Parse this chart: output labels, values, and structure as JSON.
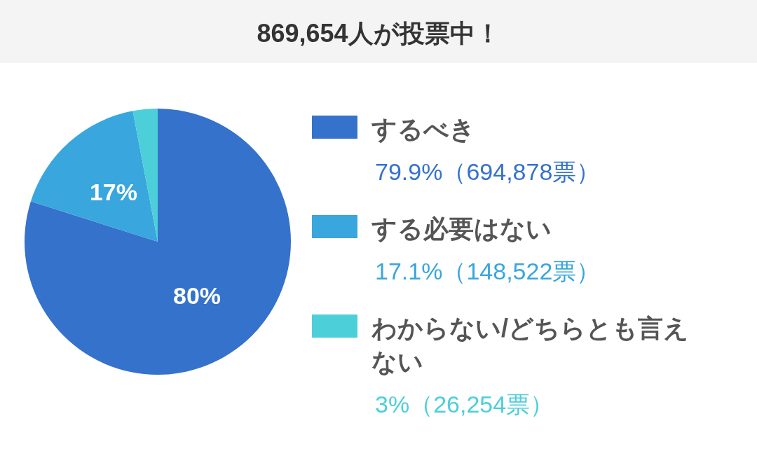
{
  "chart_data": {
    "type": "pie",
    "title": "869,654人が投票中！",
    "categories": [
      "するべき",
      "する必要はない",
      "わからない/どちらとも言えない"
    ],
    "values": [
      79.9,
      17.1,
      3
    ],
    "colors": [
      "#3572cc",
      "#39a6dd",
      "#4ccfd9"
    ],
    "value_labels": [
      "80%",
      "17%",
      null
    ],
    "annotations": [
      "79.9%（694,878票）",
      "17.1%（148,522票）",
      "3%（26,254票）"
    ],
    "legend": "right"
  }
}
